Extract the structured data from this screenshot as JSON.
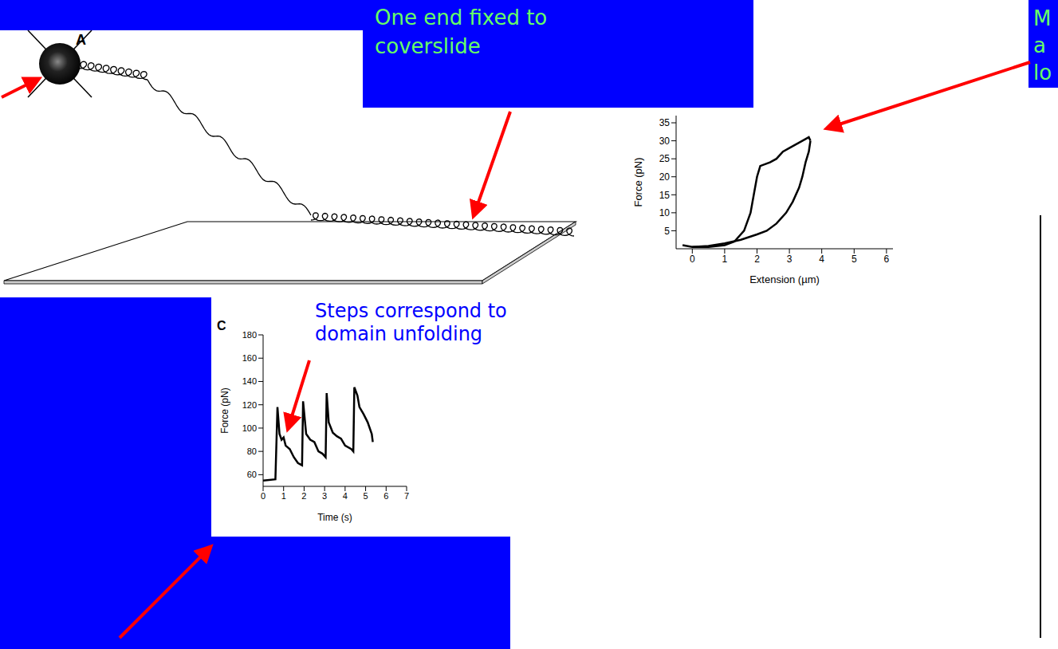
{
  "slide": {
    "diagram_label": "A",
    "callout_top": "One end fixed to coverslide",
    "callout_steps": "Steps correspond to domain unfolding",
    "callout_right_cut": [
      "M",
      "a",
      "lo"
    ]
  },
  "chart_data": [
    {
      "type": "line",
      "x_label": "Extension (µm)",
      "y_label": "Force (pN)",
      "xlim": [
        -0.5,
        6.2
      ],
      "xticks": [
        0,
        1,
        2,
        3,
        4,
        5,
        6
      ],
      "ylim": [
        0,
        37
      ],
      "yticks": [
        5,
        10,
        15,
        20,
        25,
        30,
        35
      ],
      "series": [
        {
          "color": "#000000",
          "x": [
            -0.3,
            0,
            0.5,
            1,
            1.3,
            1.6,
            1.8,
            1.9,
            2,
            2.1,
            2.4,
            2.6,
            2.8,
            3,
            3.2,
            3.4,
            3.6,
            3.65
          ],
          "values": [
            1,
            0.5,
            0.5,
            1,
            2,
            5,
            10,
            15,
            20,
            23,
            24,
            25,
            27,
            28,
            29,
            30,
            31,
            30
          ]
        },
        {
          "color": "#000000",
          "x": [
            3.65,
            3.6,
            3.5,
            3.4,
            3.3,
            3.1,
            2.9,
            2.6,
            2.3,
            2,
            1.5,
            1,
            0.5,
            0
          ],
          "values": [
            30,
            27,
            24,
            20,
            17,
            13,
            10,
            7,
            5,
            4,
            2.5,
            1.5,
            0.8,
            0.5
          ]
        }
      ]
    },
    {
      "type": "line",
      "panel_label": "C",
      "x_label": "Time (s)",
      "y_label": "Force (pN)",
      "xlim": [
        0,
        7
      ],
      "xticks": [
        0,
        1,
        2,
        3,
        4,
        5,
        6,
        7
      ],
      "ylim": [
        50,
        180
      ],
      "yticks": [
        60,
        80,
        100,
        120,
        140,
        160,
        180
      ],
      "series": [
        {
          "color": "#000000",
          "x": [
            0,
            0.6,
            0.7,
            0.8,
            0.9,
            1.0,
            1.1,
            1.3,
            1.5,
            1.7,
            1.9,
            1.95,
            2.1,
            2.3,
            2.5,
            2.7,
            2.9,
            3.05,
            3.1,
            3.2,
            3.4,
            3.6,
            3.8,
            4.0,
            4.3,
            4.4,
            4.45,
            4.6,
            4.7,
            4.9,
            5.1,
            5.3,
            5.35
          ],
          "values": [
            55,
            56,
            118,
            95,
            90,
            92,
            85,
            82,
            75,
            70,
            68,
            123,
            95,
            90,
            88,
            80,
            78,
            75,
            130,
            105,
            96,
            93,
            91,
            85,
            82,
            80,
            135,
            128,
            118,
            112,
            105,
            95,
            88
          ]
        }
      ]
    }
  ]
}
